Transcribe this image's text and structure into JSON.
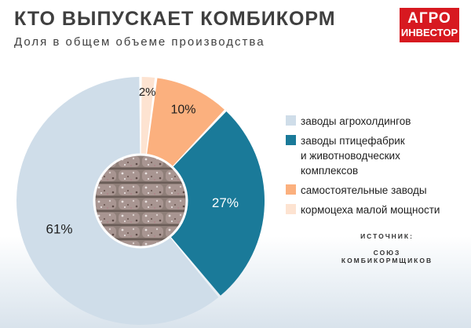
{
  "title": "КТО ВЫПУСКАЕТ КОМБИКОРМ",
  "subtitle": "Доля в общем объеме производства",
  "logo": {
    "line1": "АГРО",
    "line2": "ИНВЕСТОР"
  },
  "source": {
    "label": "ИСТОЧНИК:",
    "text": "СОЮЗ КОМБИКОРМЩИКОВ"
  },
  "chart_data": {
    "type": "pie",
    "title": "КТО ВЫПУСКАЕТ КОМБИКОРМ",
    "subtitle": "Доля в общем объеме производства",
    "legend_position": "right",
    "slices": [
      {
        "label": "заводы агрохолдингов",
        "value": 61,
        "value_label": "61%",
        "color": "#cfdde9",
        "text_color": "#1e1e1e"
      },
      {
        "label": "заводы птицефабрик и животноводческих комплексов",
        "label_lines": [
          "заводы птицефабрик",
          "и животноводческих",
          "комплексов"
        ],
        "value": 27,
        "value_label": "27%",
        "color": "#1a7a99",
        "text_color": "#ffffff"
      },
      {
        "label": "самостоятельные заводы",
        "value": 10,
        "value_label": "10%",
        "color": "#fbb07e",
        "text_color": "#1e1e1e"
      },
      {
        "label": "кормоцеха малой мощности",
        "value": 2,
        "value_label": "2%",
        "color": "#fde3d1",
        "text_color": "#1e1e1e"
      }
    ],
    "slice_order_clockwise_from_top": [
      3,
      2,
      1,
      0
    ]
  }
}
